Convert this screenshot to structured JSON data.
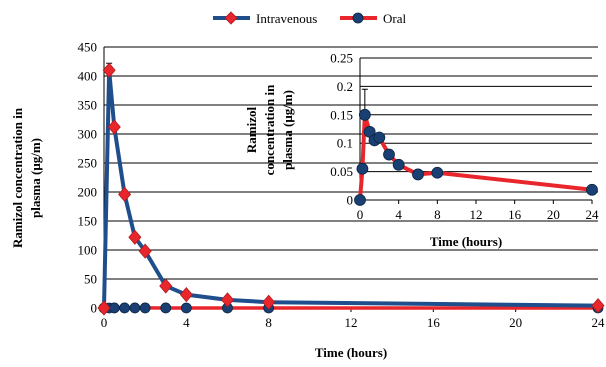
{
  "legend": {
    "intravenous_label": "Intravenous",
    "oral_label": "Oral"
  },
  "colors": {
    "intravenous": "#1f4e8c",
    "intravenous_marker": "#e8262b",
    "oral": "#e8262b",
    "oral_marker": "#1a3f73"
  },
  "chart_data": [
    {
      "type": "line",
      "ylabel": "Ramizol concentration in plasma (μg/m)",
      "xlabel": "Time (hours)",
      "xlim": [
        0,
        24
      ],
      "ylim": [
        0,
        450
      ],
      "xticks": [
        0,
        4,
        8,
        12,
        16,
        20,
        24
      ],
      "yticks": [
        0,
        50,
        100,
        150,
        200,
        250,
        300,
        350,
        400,
        450
      ],
      "grid": "horizontal",
      "legend_position": "top",
      "series": [
        {
          "name": "Intravenous",
          "x": [
            0,
            0.25,
            0.5,
            1,
            1.5,
            2,
            3,
            4,
            6,
            8,
            24
          ],
          "y": [
            0,
            410,
            312,
            196,
            122,
            98,
            38,
            23,
            14,
            10,
            4
          ],
          "error_top": [
            0,
            422,
            0,
            0,
            0,
            0,
            0,
            0,
            0,
            0,
            0
          ]
        },
        {
          "name": "Oral",
          "x": [
            0,
            0.25,
            0.5,
            1,
            1.5,
            2,
            3,
            4,
            6,
            8,
            24
          ],
          "y": [
            0,
            0.05,
            0.15,
            0.12,
            0.11,
            0.11,
            0.08,
            0.06,
            0.04,
            0.05,
            0.02
          ]
        }
      ]
    },
    {
      "type": "line",
      "ylabel": "Ramizol concentration in plasma (μg/m)",
      "xlabel": "Time (hours)",
      "xlim": [
        0,
        24
      ],
      "ylim": [
        0,
        0.25
      ],
      "xticks": [
        0,
        4,
        8,
        12,
        16,
        20,
        24
      ],
      "yticks": [
        "0",
        "0.05",
        "0.1",
        "0.15",
        "0.2",
        "0.25"
      ],
      "grid": "horizontal",
      "series": [
        {
          "name": "Oral",
          "x": [
            0,
            0.25,
            0.5,
            1,
            1.5,
            2,
            3,
            4,
            6,
            8,
            24
          ],
          "y": [
            0,
            0.055,
            0.15,
            0.12,
            0.105,
            0.11,
            0.08,
            0.062,
            0.045,
            0.048,
            0.018
          ],
          "error_top": [
            0,
            0,
            0.195,
            0,
            0,
            0,
            0,
            0,
            0,
            0,
            0
          ]
        }
      ]
    }
  ]
}
